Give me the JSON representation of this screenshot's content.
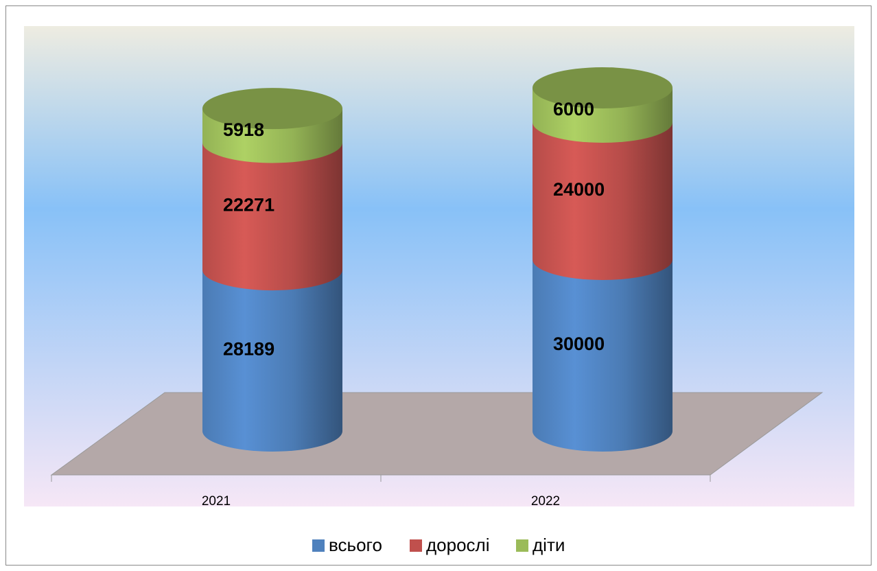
{
  "chart_data": {
    "type": "bar",
    "stacked": true,
    "categories": [
      "2021",
      "2022"
    ],
    "series": [
      {
        "name": "всього",
        "color": "#4f81bd",
        "values": [
          28189,
          30000
        ]
      },
      {
        "name": "дорослі",
        "color": "#c0504d",
        "values": [
          22271,
          24000
        ]
      },
      {
        "name": "діти",
        "color": "#9bbb59",
        "values": [
          5918,
          6000
        ]
      }
    ],
    "legend": "bottom"
  }
}
